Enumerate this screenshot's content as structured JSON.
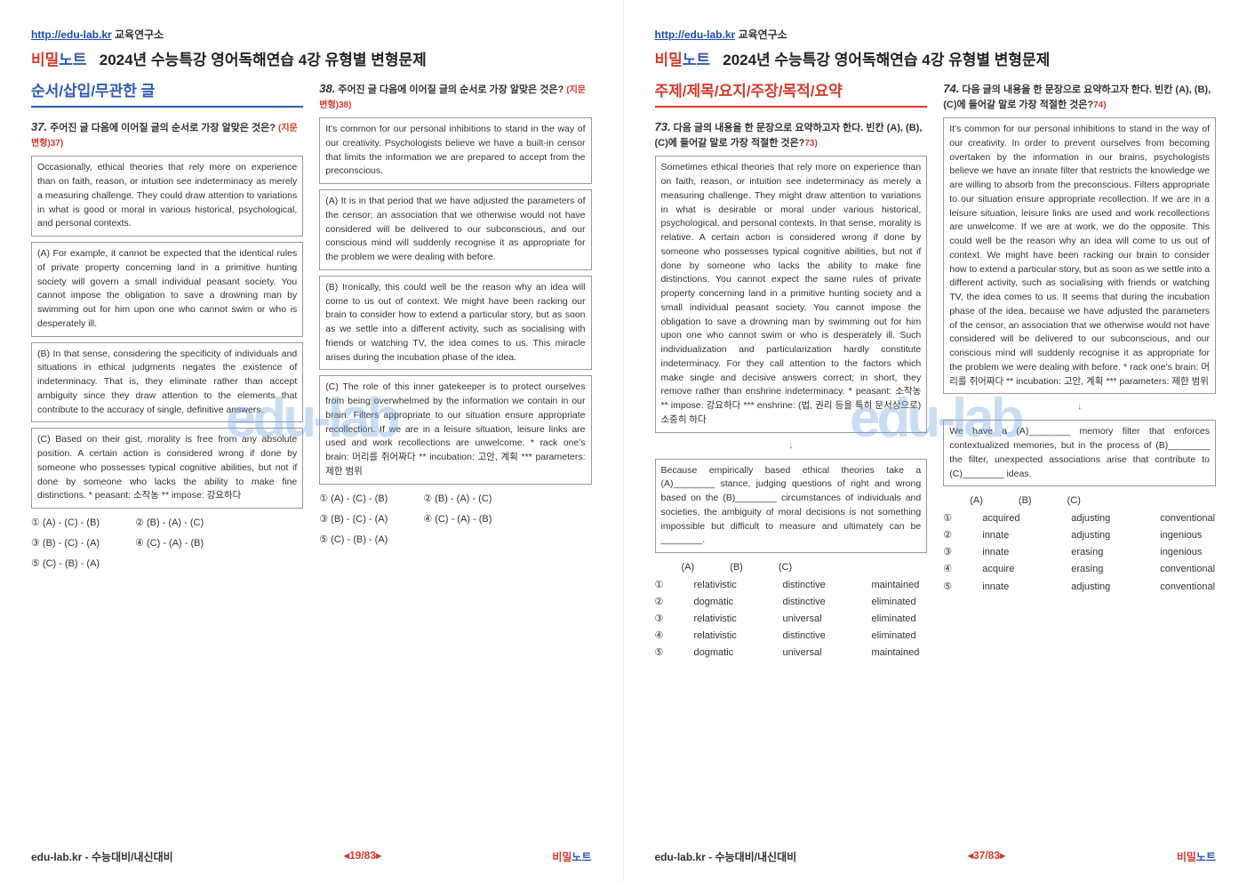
{
  "header": {
    "url": "http://edu-lab.kr",
    "org": " 교육연구소",
    "brand_a": "비밀",
    "brand_b": "노트",
    "title": "2024년 수능특강 영어독해연습 4강 유형별 변형문제"
  },
  "watermark": "edu-lab",
  "left": {
    "section": "순서/삽입/무관한 글",
    "q37": {
      "num": "37.",
      "prompt": "주어진 글 다음에 이어질 글의 순서로 가장 알맞은 것은?",
      "meta": "(지문 변형)37)",
      "p_intro": "Occasionally, ethical theories that rely more on experience than on faith, reason, or intuition see indeterminacy as merely a measuring challenge. They could draw attention to variations in what is good or moral in various historical, psychological, and personal contexts.",
      "p_a": "(A) For example, it cannot be expected that the identical rules of private property concerning land in a primitive hunting society will govern a small individual peasant society. You cannot impose the obligation to save a drowning man by swimming out for him upon one who cannot swim or who is desperately ill.",
      "p_b": "(B) In that sense, considering the specificity of individuals and situations in ethical judgments negates the existence of indeterminacy. That is, they eliminate rather than accept ambiguity since they draw attention to the elements that contribute to the accuracy of single, definitive answers.",
      "p_c": "(C) Based on their gist, morality is free from any absolute position. A certain action is considered wrong if done by someone who possesses typical cognitive abilities, but not if done by someone who lacks the ability to make fine distinctions. * peasant: 소작농 ** impose: 강요하다",
      "opts": [
        "① (A) - (C) - (B)",
        "② (B) - (A) - (C)",
        "③ (B) - (C) - (A)",
        "④ (C) - (A) - (B)",
        "⑤ (C) - (B) - (A)"
      ]
    },
    "q38": {
      "num": "38.",
      "prompt": "주어진 글 다음에 이어질 글의 순서로 가장 알맞은 것은?",
      "meta": "(지문 변형)38)",
      "p_intro": "It's common for our personal inhibitions to stand in the way of our creativity. Psychologists believe we have a built-in censor that limits the information we are prepared to accept from the preconscious.",
      "p_a": "(A) It is in that period that we have adjusted the parameters of the censor; an association that we otherwise would not have considered will be delivered to our subconscious, and our conscious mind will suddenly recognise it as appropriate for the problem we were dealing with before.",
      "p_b": "(B) Ironically, this could well be the reason why an idea will come to us out of context. We might have been racking our brain to consider how to extend a particular story, but as soon as we settle into a different activity, such as socialising with friends or watching TV, the idea comes to us. This miracle arises during the incubation phase of the idea.",
      "p_c": "(C) The role of this inner gatekeeper is to protect ourselves from being overwhelmed by the information we contain in our brain. Filters appropriate to our situation ensure appropriate recollection. If we are in a leisure situation, leisure links are used and work recollections are unwelcome. * rack one's brain: 머리를 쥐어짜다 ** incubation: 고안, 계획 *** parameters: 제한 범위",
      "opts": [
        "① (A) - (C) - (B)",
        "② (B) - (A) - (C)",
        "③ (B) - (C) - (A)",
        "④ (C) - (A) - (B)",
        "⑤ (C) - (B) - (A)"
      ]
    },
    "footer": {
      "left": "edu-lab.kr - 수능대비/내신대비",
      "mid": "◂19/83▸"
    }
  },
  "right": {
    "section": "주제/제목/요지/주장/목적/요약",
    "q73": {
      "num": "73.",
      "prompt": "다음 글의 내용을 한 문장으로 요약하고자 한다. 빈칸 (A), (B), (C)에 들어갈 말로 가장 적절한 것은?",
      "meta": "73)",
      "p": "Sometimes ethical theories that rely more on experience than on faith, reason, or intuition see indeterminacy as merely a measuring challenge. They might draw attention to variations in what is desirable or moral under various historical, psychological, and personal contexts. In that sense, morality is relative. A certain action is considered wrong if done by someone who possesses typical cognitive abilities, but not if done by someone who lacks the ability to make fine distinctions. You cannot expect the same rules of private property concerning land in a primitive hunting society and a small individual peasant society. You cannot impose the obligation to save a drowning man by swimming out for him upon one who cannot swim or who is desperately ill. Such individualization and particularization hardly constitute indeterminacy. For they call attention to the factors which make single and decisive answers correct; in short, they remove rather than enshrine indeterminacy. * peasant: 소작농 ** impose: 강요하다 *** enshrine: (법, 권리 등을 특히 문서상으로) 소중히 하다",
      "sum": "Because empirically based ethical theories take a (A)________ stance, judging questions of right and wrong based on the (B)________ circumstances of individuals and societies, the ambiguity of moral decisions is not something impossible but difficult to measure and ultimately can be ________.",
      "thead": [
        "(A)",
        "(B)",
        "(C)"
      ],
      "rows": [
        [
          "①",
          "relativistic",
          "distinctive",
          "maintained"
        ],
        [
          "②",
          "dogmatic",
          "distinctive",
          "eliminated"
        ],
        [
          "③",
          "relativistic",
          "universal",
          "eliminated"
        ],
        [
          "④",
          "relativistic",
          "distinctive",
          "eliminated"
        ],
        [
          "⑤",
          "dogmatic",
          "universal",
          "maintained"
        ]
      ]
    },
    "q74": {
      "num": "74.",
      "prompt": "다음 글의 내용을 한 문장으로 요약하고자 한다. 빈칸 (A), (B), (C)에 들어갈 말로 가장 적절한 것은?",
      "meta": "74)",
      "p": "It's common for our personal inhibitions to stand in the way of our creativity. In order to prevent ourselves from becoming overtaken by the information in our brains, psychologists believe we have an innate filter that restricts the knowledge we are willing to absorb from the preconscious. Filters appropriate to our situation ensure appropriate recollection. If we are in a leisure situation, leisure links are used and work recollections are unwelcome. If we are at work, we do the opposite. This could well be the reason why an idea will come to us out of context. We might have been racking our brain to consider how to extend a particular story, but as soon as we settle into a different activity, such as socialising with friends or watching TV, the idea comes to us. It seems that during the incubation phase of the idea, because we have adjusted the parameters of the censor, an association that we otherwise would not have considered will be delivered to our subconscious, and our conscious mind will suddenly recognise it as appropriate for the problem we were dealing with before. * rack one's brain: 머리를 쥐어짜다 ** incubation: 고안, 계획 *** parameters: 제한 범위",
      "sum": "We have a (A)________ memory filter that enforces contextualized memories, but in the process of (B)________ the filter, unexpected associations arise that contribute to (C)________ ideas.",
      "thead": [
        "(A)",
        "(B)",
        "(C)"
      ],
      "rows": [
        [
          "①",
          "acquired",
          "adjusting",
          "conventional"
        ],
        [
          "②",
          "innate",
          "adjusting",
          "ingenious"
        ],
        [
          "③",
          "innate",
          "erasing",
          "ingenious"
        ],
        [
          "④",
          "acquire",
          "erasing",
          "conventional"
        ],
        [
          "⑤",
          "innate",
          "adjusting",
          "conventional"
        ]
      ]
    },
    "footer": {
      "left": "edu-lab.kr - 수능대비/내신대비",
      "mid": "◂37/83▸"
    }
  }
}
